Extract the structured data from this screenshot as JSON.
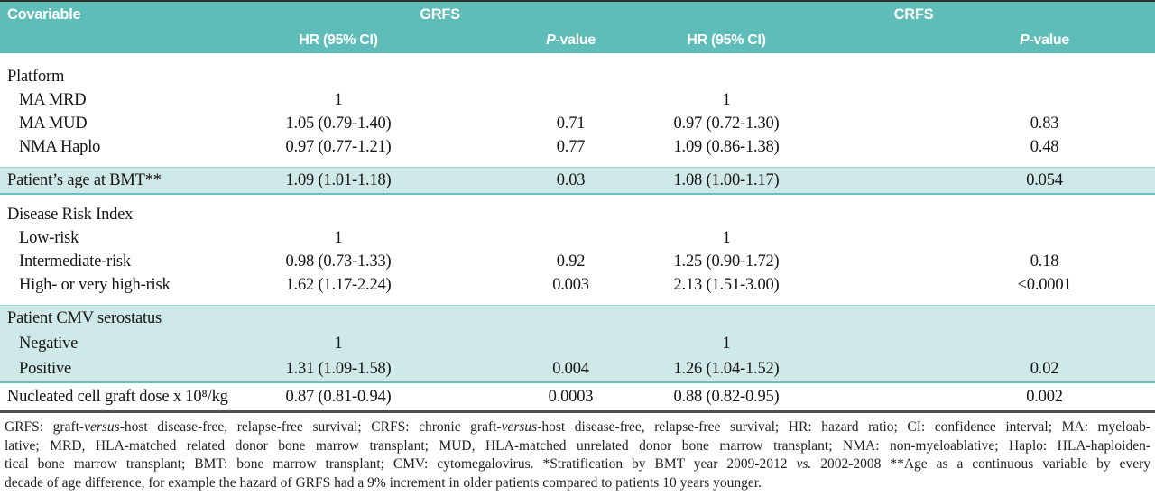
{
  "palette": {
    "header_teal": "#5ebdb9",
    "band_teal": "#cfe9e8",
    "band_rule_teal": "#65c2be",
    "bottom_rule_dark": "#4f4f4f",
    "header_text": "#ffffff",
    "body_text": "#161616"
  },
  "table": {
    "header": {
      "covariable": "Covariable",
      "group_grfs": "GRFS",
      "group_crfs": "CRFS",
      "hr_label": "HR (95% CI)",
      "p_label": {
        "italic": "P",
        "rest": "-value"
      }
    },
    "sections": [
      {
        "highlight": false,
        "rows": [
          {
            "label": "Platform",
            "indent": false,
            "grfs_hr": "",
            "grfs_p": "",
            "crfs_hr": "",
            "crfs_p": ""
          },
          {
            "label": "MA MRD",
            "indent": true,
            "grfs_hr": "1",
            "grfs_p": "",
            "crfs_hr": "1",
            "crfs_p": ""
          },
          {
            "label": "MA MUD",
            "indent": true,
            "grfs_hr": "1.05 (0.79-1.40)",
            "grfs_p": "0.71",
            "crfs_hr": "0.97 (0.72-1.30)",
            "crfs_p": "0.83"
          },
          {
            "label": "NMA Haplo",
            "indent": true,
            "grfs_hr": "0.97 (0.77-1.21)",
            "grfs_p": "0.77",
            "crfs_hr": "1.09 (0.86-1.38)",
            "crfs_p": "0.48"
          }
        ]
      },
      {
        "highlight": true,
        "rows": [
          {
            "label": "Patient’s age at BMT**",
            "indent": false,
            "grfs_hr": "1.09 (1.01-1.18)",
            "grfs_p": "0.03",
            "crfs_hr": "1.08 (1.00-1.17)",
            "crfs_p": "0.054"
          }
        ]
      },
      {
        "highlight": false,
        "rows": [
          {
            "label": "Disease Risk Index",
            "indent": false,
            "grfs_hr": "",
            "grfs_p": "",
            "crfs_hr": "",
            "crfs_p": ""
          },
          {
            "label": "Low-risk",
            "indent": true,
            "grfs_hr": "1",
            "grfs_p": "",
            "crfs_hr": "1",
            "crfs_p": ""
          },
          {
            "label": "Intermediate-risk",
            "indent": true,
            "grfs_hr": "0.98 (0.73-1.33)",
            "grfs_p": "0.92",
            "crfs_hr": "1.25 (0.90-1.72)",
            "crfs_p": "0.18"
          },
          {
            "label": "High- or very high-risk",
            "indent": true,
            "grfs_hr": "1.62 (1.17-2.24)",
            "grfs_p": "0.003",
            "crfs_hr": "2.13 (1.51-3.00)",
            "crfs_p": "<0.0001"
          }
        ]
      },
      {
        "highlight": true,
        "rows": [
          {
            "label": "Patient CMV serostatus",
            "indent": false,
            "grfs_hr": "",
            "grfs_p": "",
            "crfs_hr": "",
            "crfs_p": ""
          },
          {
            "label": "Negative",
            "indent": true,
            "grfs_hr": "1",
            "grfs_p": "",
            "crfs_hr": "1",
            "crfs_p": ""
          },
          {
            "label": "Positive",
            "indent": true,
            "grfs_hr": "1.31 (1.09-1.58)",
            "grfs_p": "0.004",
            "crfs_hr": "1.26 (1.04-1.52)",
            "crfs_p": "0.02"
          }
        ]
      },
      {
        "highlight": false,
        "final": true,
        "rows": [
          {
            "label": "Nucleated cell graft dose x 10⁸/kg",
            "indent": false,
            "grfs_hr": "0.87 (0.81-0.94)",
            "grfs_p": "0.0003",
            "crfs_hr": "0.88 (0.82-0.95)",
            "crfs_p": "0.002"
          }
        ]
      }
    ]
  },
  "footnote": {
    "lines": [
      [
        {
          "t": "GRFS: graft-",
          "i": false
        },
        {
          "t": "versus",
          "i": true
        },
        {
          "t": "-host disease-free, relapse-free survival; CRFS: chronic graft-",
          "i": false
        },
        {
          "t": "versus",
          "i": true
        },
        {
          "t": "-host disease-free, relapse-free survival; HR: hazard ratio; CI: confidence interval; MA: myeloab-",
          "i": false
        }
      ],
      [
        {
          "t": "lative; MRD, HLA-matched related donor bone marrow transplant; MUD, HLA-matched unrelated donor bone marrow transplant; NMA: non-myeloablative; Haplo: HLA-haploiden-",
          "i": false
        }
      ],
      [
        {
          "t": "tical bone marrow transplant; BMT: bone marrow transplant; CMV: cytomegalovirus. *Stratification by BMT year 2009-2012 ",
          "i": false
        },
        {
          "t": "vs.",
          "i": true
        },
        {
          "t": " 2002-2008 **Age as a continuous variable by every",
          "i": false
        }
      ],
      [
        {
          "t": "decade of age difference, for example the hazard of GRFS had a 9% increment in older patients compared to patients 10 years younger.",
          "i": false
        }
      ]
    ]
  }
}
